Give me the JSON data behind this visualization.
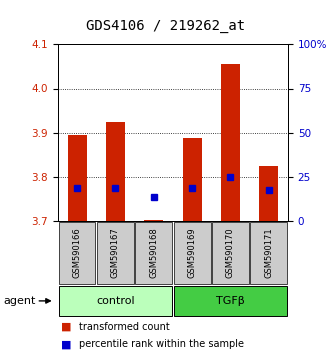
{
  "title": "GDS4106 / 219262_at",
  "samples": [
    "GSM590166",
    "GSM590167",
    "GSM590168",
    "GSM590169",
    "GSM590170",
    "GSM590171"
  ],
  "bar_bottom": 3.7,
  "bar_top": [
    3.895,
    3.925,
    3.703,
    3.888,
    4.055,
    3.825
  ],
  "percentile_values": [
    3.775,
    3.775,
    3.755,
    3.775,
    3.8,
    3.77
  ],
  "ylim": [
    3.7,
    4.1
  ],
  "yticks": [
    3.7,
    3.8,
    3.9,
    4.0,
    4.1
  ],
  "right_ytick_labels": [
    "0",
    "25",
    "50",
    "75",
    "100%"
  ],
  "right_ytick_vals": [
    3.7,
    3.8,
    3.9,
    4.0,
    4.1
  ],
  "bar_color": "#CC2200",
  "percentile_color": "#0000CC",
  "left_tick_color": "#CC2200",
  "right_tick_color": "#0000CC",
  "control_bg": "#BBFFBB",
  "tgfb_bg": "#44CC44",
  "sample_bg": "#CCCCCC",
  "title_fontsize": 10,
  "tick_fontsize": 7.5,
  "sample_fontsize": 6,
  "group_fontsize": 8,
  "legend_fontsize": 7,
  "agent_fontsize": 8,
  "bar_width": 0.5,
  "marker_size": 4
}
